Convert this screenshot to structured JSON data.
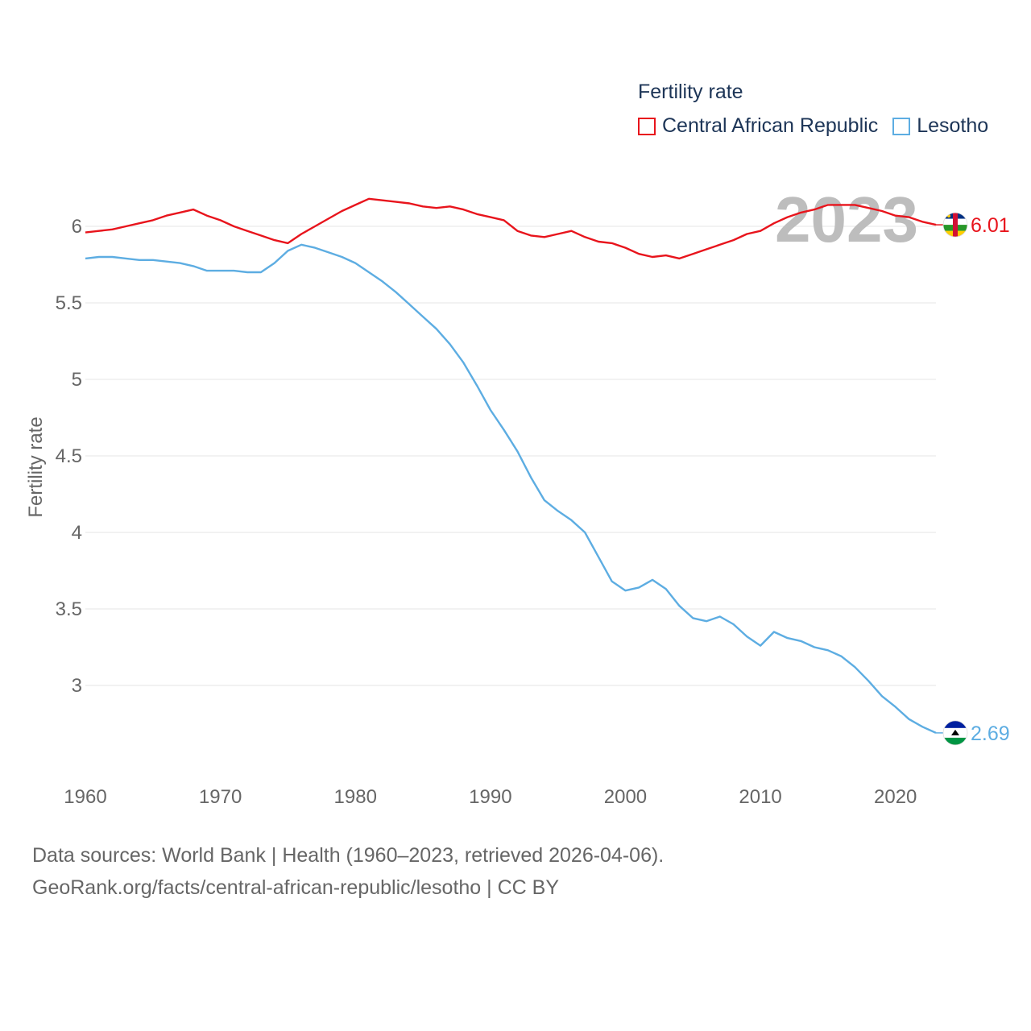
{
  "chart_data": {
    "type": "line",
    "title": "Fertility rate",
    "legend_title": "Fertility rate",
    "xlabel": "",
    "ylabel": "Fertility rate",
    "year_overlay": "2023",
    "xlim": [
      1960,
      2023
    ],
    "ylim": [
      2.5,
      6.3
    ],
    "x_ticks": [
      1960,
      1970,
      1980,
      1990,
      2000,
      2010,
      2020
    ],
    "y_ticks": [
      3,
      3.5,
      4,
      4.5,
      5,
      5.5,
      6
    ],
    "x": [
      1960,
      1961,
      1962,
      1963,
      1964,
      1965,
      1966,
      1967,
      1968,
      1969,
      1970,
      1971,
      1972,
      1973,
      1974,
      1975,
      1976,
      1977,
      1978,
      1979,
      1980,
      1981,
      1982,
      1983,
      1984,
      1985,
      1986,
      1987,
      1988,
      1989,
      1990,
      1991,
      1992,
      1993,
      1994,
      1995,
      1996,
      1997,
      1998,
      1999,
      2000,
      2001,
      2002,
      2003,
      2004,
      2005,
      2006,
      2007,
      2008,
      2009,
      2010,
      2011,
      2012,
      2013,
      2014,
      2015,
      2016,
      2017,
      2018,
      2019,
      2020,
      2021,
      2022,
      2023
    ],
    "series": [
      {
        "name": "Central African Republic",
        "color": "#e8141c",
        "end_label": "6.01",
        "flag": "central-african-republic-flag-icon",
        "values": [
          5.96,
          5.97,
          5.98,
          6.0,
          6.02,
          6.04,
          6.07,
          6.09,
          6.11,
          6.07,
          6.04,
          6.0,
          5.97,
          5.94,
          5.91,
          5.89,
          5.95,
          6.0,
          6.05,
          6.1,
          6.14,
          6.18,
          6.17,
          6.16,
          6.15,
          6.13,
          6.12,
          6.13,
          6.11,
          6.08,
          6.06,
          6.04,
          5.97,
          5.94,
          5.93,
          5.95,
          5.97,
          5.93,
          5.9,
          5.89,
          5.86,
          5.82,
          5.8,
          5.81,
          5.79,
          5.82,
          5.85,
          5.88,
          5.91,
          5.95,
          5.97,
          6.02,
          6.06,
          6.09,
          6.11,
          6.14,
          6.14,
          6.14,
          6.12,
          6.1,
          6.07,
          6.06,
          6.03,
          6.01
        ]
      },
      {
        "name": "Lesotho",
        "color": "#5dade2",
        "end_label": "2.69",
        "flag": "lesotho-flag-icon",
        "values": [
          5.79,
          5.8,
          5.8,
          5.79,
          5.78,
          5.78,
          5.77,
          5.76,
          5.74,
          5.71,
          5.71,
          5.71,
          5.7,
          5.7,
          5.76,
          5.84,
          5.88,
          5.86,
          5.83,
          5.8,
          5.76,
          5.7,
          5.64,
          5.57,
          5.49,
          5.41,
          5.33,
          5.23,
          5.11,
          4.96,
          4.8,
          4.67,
          4.53,
          4.36,
          4.21,
          4.14,
          4.08,
          4.0,
          3.84,
          3.68,
          3.62,
          3.64,
          3.69,
          3.63,
          3.52,
          3.44,
          3.42,
          3.45,
          3.4,
          3.32,
          3.26,
          3.35,
          3.31,
          3.29,
          3.25,
          3.23,
          3.19,
          3.12,
          3.03,
          2.93,
          2.86,
          2.78,
          2.73,
          2.69
        ]
      }
    ]
  },
  "footer": {
    "sources": "Data sources: World Bank | Health (1960–2023, retrieved 2026-04-06).",
    "credit": "GeoRank.org/facts/central-african-republic/lesotho | CC BY"
  }
}
